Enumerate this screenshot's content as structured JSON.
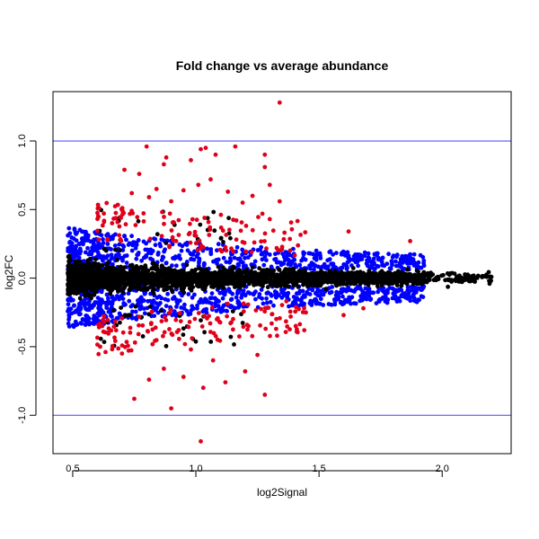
{
  "chart_data": {
    "type": "scatter",
    "title": "Fold change vs average abundance",
    "xlabel": "log2Signal",
    "ylabel": "log2FC",
    "xlim": [
      0.42,
      2.28
    ],
    "ylim": [
      -1.28,
      1.36
    ],
    "x_ticks": [
      0.5,
      1.0,
      1.5,
      2.0
    ],
    "x_tick_labels": [
      "0.5",
      "1.0",
      "1.5",
      "2.0"
    ],
    "y_ticks": [
      -1.0,
      -0.5,
      0.0,
      0.5,
      1.0
    ],
    "y_tick_labels": [
      "-1.0",
      "-0.5",
      "0.0",
      "0.5",
      "1.0"
    ],
    "grid": false,
    "legend": "none",
    "reference_lines": [
      {
        "axis": "y",
        "value": 1.0,
        "color": "#4040ff"
      },
      {
        "axis": "y",
        "value": -1.0,
        "color": "#4040ff"
      }
    ],
    "series_colors": {
      "black": "#000000",
      "blue": "#0000ff",
      "red": "#e0001a"
    },
    "series": [
      {
        "color": "#e0001a",
        "points": [
          [
            1.34,
            1.28
          ],
          [
            0.8,
            0.96
          ],
          [
            1.02,
            0.94
          ],
          [
            1.04,
            0.95
          ],
          [
            1.16,
            0.96
          ],
          [
            1.28,
            0.9
          ],
          [
            1.28,
            0.81
          ],
          [
            0.88,
            0.88
          ],
          [
            0.87,
            0.83
          ],
          [
            0.71,
            0.79
          ],
          [
            0.98,
            0.86
          ],
          [
            1.08,
            0.9
          ],
          [
            0.77,
            0.76
          ],
          [
            1.06,
            0.72
          ],
          [
            1.3,
            0.68
          ],
          [
            1.01,
            0.68
          ],
          [
            0.95,
            0.64
          ],
          [
            0.84,
            0.65
          ],
          [
            1.13,
            0.63
          ],
          [
            1.23,
            0.6
          ],
          [
            1.34,
            0.56
          ],
          [
            1.19,
            0.55
          ],
          [
            0.9,
            0.56
          ],
          [
            0.81,
            0.59
          ],
          [
            0.74,
            0.62
          ],
          [
            1.27,
            0.47
          ],
          [
            1.87,
            0.27
          ],
          [
            1.62,
            0.34
          ],
          [
            0.66,
            0.4
          ],
          [
            1.02,
            -1.19
          ],
          [
            1.28,
            -0.85
          ],
          [
            0.75,
            -0.88
          ],
          [
            0.9,
            -0.95
          ],
          [
            1.03,
            -0.8
          ],
          [
            1.12,
            -0.76
          ],
          [
            1.2,
            -0.68
          ],
          [
            0.81,
            -0.74
          ],
          [
            0.95,
            -0.72
          ],
          [
            0.87,
            -0.66
          ],
          [
            1.25,
            -0.56
          ],
          [
            0.7,
            -0.55
          ],
          [
            1.07,
            -0.6
          ],
          [
            0.98,
            -0.52
          ],
          [
            1.44,
            -0.38
          ],
          [
            1.33,
            -0.42
          ],
          [
            0.62,
            -0.35
          ],
          [
            1.6,
            -0.27
          ],
          [
            1.68,
            -0.22
          ]
        ]
      }
    ]
  }
}
